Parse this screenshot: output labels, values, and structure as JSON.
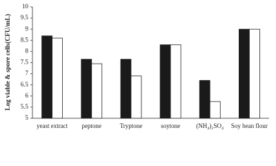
{
  "chart_data": {
    "type": "bar",
    "y_label": "Log viable & spore cells(CFU/mL)",
    "categories": [
      "yeast extract",
      "peptone",
      "Tryptone",
      "soytone",
      "(NH₄)₂SO₄",
      "Soy bean flour"
    ],
    "series": [
      {
        "color": "#1a1a1a",
        "values": [
          8.7,
          7.65,
          7.65,
          8.3,
          6.7,
          9.0
        ]
      },
      {
        "color": "#ffffff",
        "values": [
          8.6,
          7.45,
          6.9,
          8.3,
          5.75,
          9.0
        ]
      }
    ],
    "ylim": [
      5,
      10
    ],
    "yticks": [
      5,
      5.5,
      6,
      6.5,
      7,
      7.5,
      8,
      8.5,
      9,
      9.5,
      10
    ],
    "grid": false
  }
}
